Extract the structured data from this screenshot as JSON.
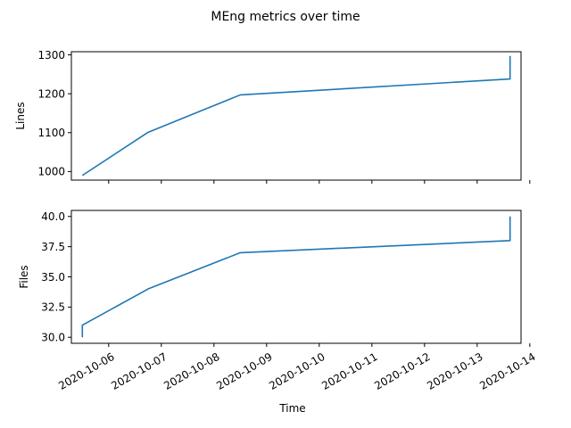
{
  "figure": {
    "suptitle": "MEng metrics over time",
    "xlabel": "Time",
    "line_color": "#1f77b4"
  },
  "chart_data": [
    {
      "type": "line",
      "title": "",
      "xlabel": "",
      "ylabel": "Lines",
      "x": [
        "2020-10-05 12:00",
        "2020-10-06 18:00",
        "2020-10-08 12:00",
        "2020-10-13 15:00",
        "2020-10-13 15:00"
      ],
      "y": [
        990,
        1101,
        1197,
        1238,
        1297
      ],
      "ylim": [
        978,
        1308
      ],
      "yticks": [
        1000,
        1100,
        1200,
        1300
      ],
      "ytick_labels": [
        "1000",
        "1100",
        "1200",
        "1300"
      ],
      "xlim": [
        "2020-10-05 07:00",
        "2020-10-13 20:00"
      ],
      "xticks": [
        "2020-10-06",
        "2020-10-07",
        "2020-10-08",
        "2020-10-09",
        "2020-10-10",
        "2020-10-11",
        "2020-10-12",
        "2020-10-13",
        "2020-10-14"
      ],
      "show_xtick_labels": false,
      "grid": false,
      "legend": "none"
    },
    {
      "type": "line",
      "title": "",
      "xlabel": "Time",
      "ylabel": "Files",
      "x": [
        "2020-10-05 12:00",
        "2020-10-05 12:00",
        "2020-10-06 18:00",
        "2020-10-08 12:00",
        "2020-10-13 15:00",
        "2020-10-13 15:00"
      ],
      "y": [
        30,
        31,
        34,
        37,
        38,
        40
      ],
      "ylim": [
        29.5,
        40.5
      ],
      "yticks": [
        30.0,
        32.5,
        35.0,
        37.5,
        40.0
      ],
      "ytick_labels": [
        "30.0",
        "32.5",
        "35.0",
        "37.5",
        "40.0"
      ],
      "xlim": [
        "2020-10-05 07:00",
        "2020-10-13 20:00"
      ],
      "xticks": [
        "2020-10-06",
        "2020-10-07",
        "2020-10-08",
        "2020-10-09",
        "2020-10-10",
        "2020-10-11",
        "2020-10-12",
        "2020-10-13",
        "2020-10-14"
      ],
      "xtick_labels": [
        "2020-10-06",
        "2020-10-07",
        "2020-10-08",
        "2020-10-09",
        "2020-10-10",
        "2020-10-11",
        "2020-10-12",
        "2020-10-13",
        "2020-10-14"
      ],
      "show_xtick_labels": true,
      "grid": false,
      "legend": "none"
    }
  ]
}
